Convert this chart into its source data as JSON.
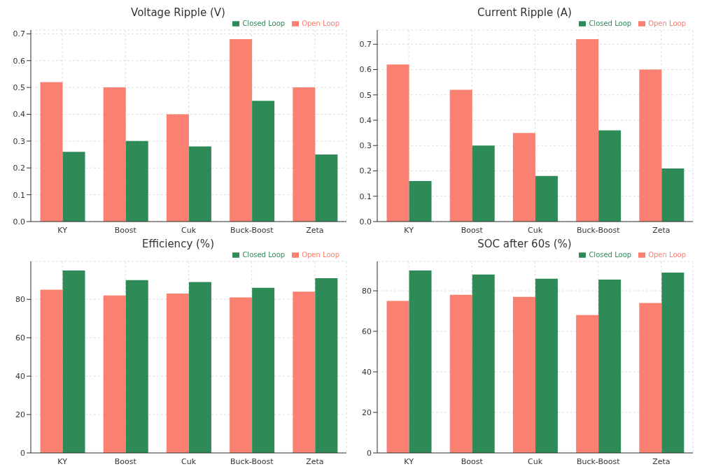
{
  "chart_data": [
    {
      "type": "bar",
      "title": "Voltage Ripple (V)",
      "categories": [
        "KY",
        "Boost",
        "Cuk",
        "Buck-Boost",
        "Zeta"
      ],
      "series": [
        {
          "name": "Open Loop",
          "color": "#fa8072",
          "values": [
            0.52,
            0.5,
            0.4,
            0.68,
            0.5
          ]
        },
        {
          "name": "Closed Loop",
          "color": "#2e8b57",
          "values": [
            0.26,
            0.3,
            0.28,
            0.45,
            0.25
          ]
        }
      ],
      "ylim": [
        0,
        0.714
      ],
      "yticks": [
        {
          "value": 0,
          "label": "0.0"
        },
        0.1,
        0.2,
        0.3,
        0.4,
        0.5,
        0.6,
        0.7
      ],
      "grid": true,
      "legend": "top right"
    },
    {
      "type": "bar",
      "title": "Current Ripple (A)",
      "categories": [
        "KY",
        "Boost",
        "Cuk",
        "Buck-Boost",
        "Zeta"
      ],
      "series": [
        {
          "name": "Open Loop",
          "color": "#fa8072",
          "values": [
            0.62,
            0.52,
            0.35,
            0.72,
            0.6
          ]
        },
        {
          "name": "Closed Loop",
          "color": "#2e8b57",
          "values": [
            0.16,
            0.3,
            0.18,
            0.36,
            0.21
          ]
        }
      ],
      "ylim": [
        0,
        0.756
      ],
      "yticks": [
        {
          "value": 0,
          "label": "0.0"
        },
        0.1,
        0.2,
        0.3,
        0.4,
        0.5,
        0.6,
        0.7
      ],
      "grid": true,
      "legend": "top right"
    },
    {
      "type": "bar",
      "title": "Efficiency (%)",
      "categories": [
        "KY",
        "Boost",
        "Cuk",
        "Buck-Boost",
        "Zeta"
      ],
      "series": [
        {
          "name": "Open Loop",
          "color": "#fa8072",
          "values": [
            85,
            82,
            83,
            81,
            84
          ]
        },
        {
          "name": "Closed Loop",
          "color": "#2e8b57",
          "values": [
            95,
            90,
            89,
            86,
            91
          ]
        }
      ],
      "ylim": [
        0,
        99.75
      ],
      "yticks": [
        0,
        20,
        40,
        60,
        80
      ],
      "grid": true,
      "legend": "top right"
    },
    {
      "type": "bar",
      "title": "SOC after 60s (%)",
      "categories": [
        "KY",
        "Boost",
        "Cuk",
        "Buck-Boost",
        "Zeta"
      ],
      "series": [
        {
          "name": "Open Loop",
          "color": "#fa8072",
          "values": [
            75,
            78,
            77,
            68,
            74
          ]
        },
        {
          "name": "Closed Loop",
          "color": "#2e8b57",
          "values": [
            90,
            88,
            86,
            85.5,
            89
          ]
        }
      ],
      "ylim": [
        0,
        94.5
      ],
      "yticks": [
        0,
        20,
        40,
        60,
        80
      ],
      "grid": true,
      "legend": "top right"
    }
  ]
}
